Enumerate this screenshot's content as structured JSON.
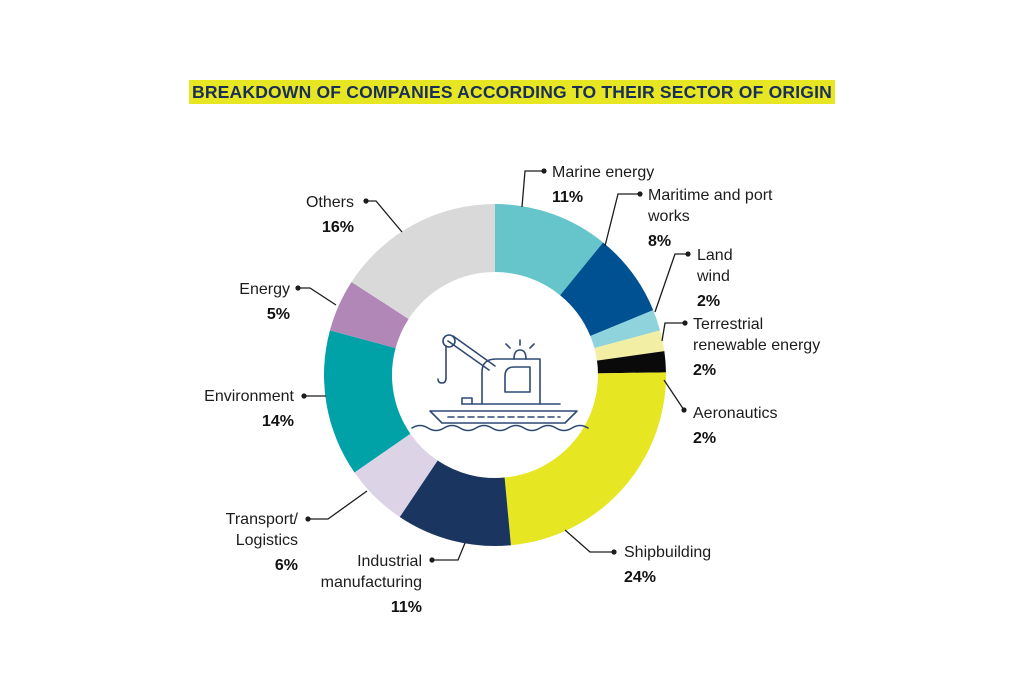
{
  "chart_data": {
    "type": "pie",
    "title": "BREAKDOWN OF COMPANIES ACCORDING TO THEIR SECTOR OF ORIGIN",
    "legend": "none",
    "unit": "%",
    "slices": [
      {
        "key": "marine-energy",
        "label_lines": [
          "Marine energy"
        ],
        "value": 11,
        "value_label": "11%",
        "color": "#66c4cb"
      },
      {
        "key": "maritime-port-works",
        "label_lines": [
          "Maritime and port",
          "works"
        ],
        "value": 8,
        "value_label": "8%",
        "color": "#005192"
      },
      {
        "key": "land-wind",
        "label_lines": [
          "Land",
          "wind"
        ],
        "value": 2,
        "value_label": "2%",
        "color": "#8fd3dc"
      },
      {
        "key": "terrestrial-renewable-energy",
        "label_lines": [
          "Terrestrial",
          "renewable energy"
        ],
        "value": 2,
        "value_label": "2%",
        "color": "#f2eea3"
      },
      {
        "key": "aeronautics",
        "label_lines": [
          "Aeronautics"
        ],
        "value": 2,
        "value_label": "2%",
        "color": "#0a0a0a"
      },
      {
        "key": "shipbuilding",
        "label_lines": [
          "Shipbuilding"
        ],
        "value": 24,
        "value_label": "24%",
        "color": "#e6e622"
      },
      {
        "key": "industrial-manufacturing",
        "label_lines": [
          "Industrial",
          "manufacturing"
        ],
        "value": 11,
        "value_label": "11%",
        "color": "#1a3560"
      },
      {
        "key": "transport-logistics",
        "label_lines": [
          "Transport/",
          "Logistics"
        ],
        "value": 6,
        "value_label": "6%",
        "color": "#dcd3e6"
      },
      {
        "key": "environment",
        "label_lines": [
          "Environment"
        ],
        "value": 14,
        "value_label": "14%",
        "color": "#00a1a7"
      },
      {
        "key": "energy",
        "label_lines": [
          "Energy"
        ],
        "value": 5,
        "value_label": "5%",
        "color": "#b087b6"
      },
      {
        "key": "others",
        "label_lines": [
          "Others"
        ],
        "value": 16,
        "value_label": "16%",
        "color": "#d9d9d9"
      }
    ]
  },
  "center_icon": "ship-crane-icon",
  "colors": {
    "title_highlight": "#e6e622",
    "title_text": "#1a2f57",
    "icon_stroke": "#2f4a75",
    "leader_line": "#1c1c1c"
  }
}
